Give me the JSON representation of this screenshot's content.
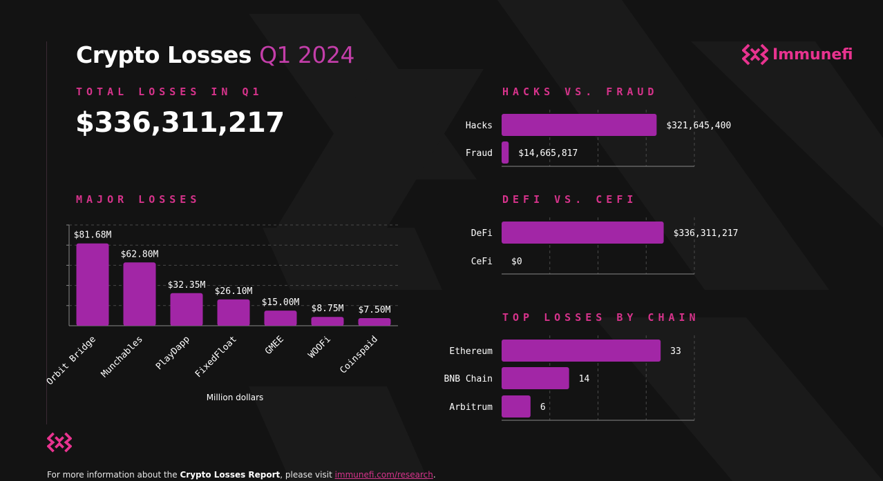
{
  "header": {
    "title_main": "Crypto Losses",
    "title_period": "Q1 2024",
    "brand": "Immunefi"
  },
  "total": {
    "label": "TOTAL LOSSES IN Q1",
    "value": "$336,311,217"
  },
  "colors": {
    "accent": "#d6338b",
    "bar": "#a226a6",
    "background": "#131313",
    "title_period": "#c33ea9"
  },
  "chart_data": [
    {
      "id": "major-losses",
      "type": "bar",
      "title": "MAJOR LOSSES",
      "xlabel": "Million dollars",
      "categories": [
        "Orbit Bridge",
        "Munchables",
        "PlayDapp",
        "FixedFloat",
        "GMEE",
        "WOOFi",
        "Coinspaid"
      ],
      "values": [
        81.68,
        62.8,
        32.35,
        26.1,
        15.0,
        8.75,
        7.5
      ],
      "labels": [
        "$81.68M",
        "$62.80M",
        "$32.35M",
        "$26.10M",
        "$15.00M",
        "$8.75M",
        "$7.50M"
      ],
      "ylim": [
        0,
        100
      ]
    },
    {
      "id": "hacks-vs-fraud",
      "type": "bar",
      "orientation": "horizontal",
      "title": "HACKS VS. FRAUD",
      "categories": [
        "Hacks",
        "Fraud"
      ],
      "values": [
        321645400,
        14665817
      ],
      "labels": [
        "$321,645,400",
        "$14,665,817"
      ],
      "xlim": [
        0,
        400000000
      ]
    },
    {
      "id": "defi-vs-cefi",
      "type": "bar",
      "orientation": "horizontal",
      "title": "DEFI VS. CEFI",
      "categories": [
        "DeFi",
        "CeFi"
      ],
      "values": [
        336311217,
        0
      ],
      "labels": [
        "$336,311,217",
        "$0"
      ],
      "xlim": [
        0,
        400000000
      ]
    },
    {
      "id": "top-losses-by-chain",
      "type": "bar",
      "orientation": "horizontal",
      "title": "TOP LOSSES BY CHAIN",
      "categories": [
        "Ethereum",
        "BNB Chain",
        "Arbitrum"
      ],
      "values": [
        33,
        14,
        6
      ],
      "labels": [
        "33",
        "14",
        "6"
      ],
      "xlim": [
        0,
        40
      ]
    }
  ],
  "footer": {
    "prefix": "For more information about the ",
    "report": "Crypto Losses Report",
    "middle": ", please visit ",
    "link": "immunefi.com/research",
    "suffix": "."
  }
}
